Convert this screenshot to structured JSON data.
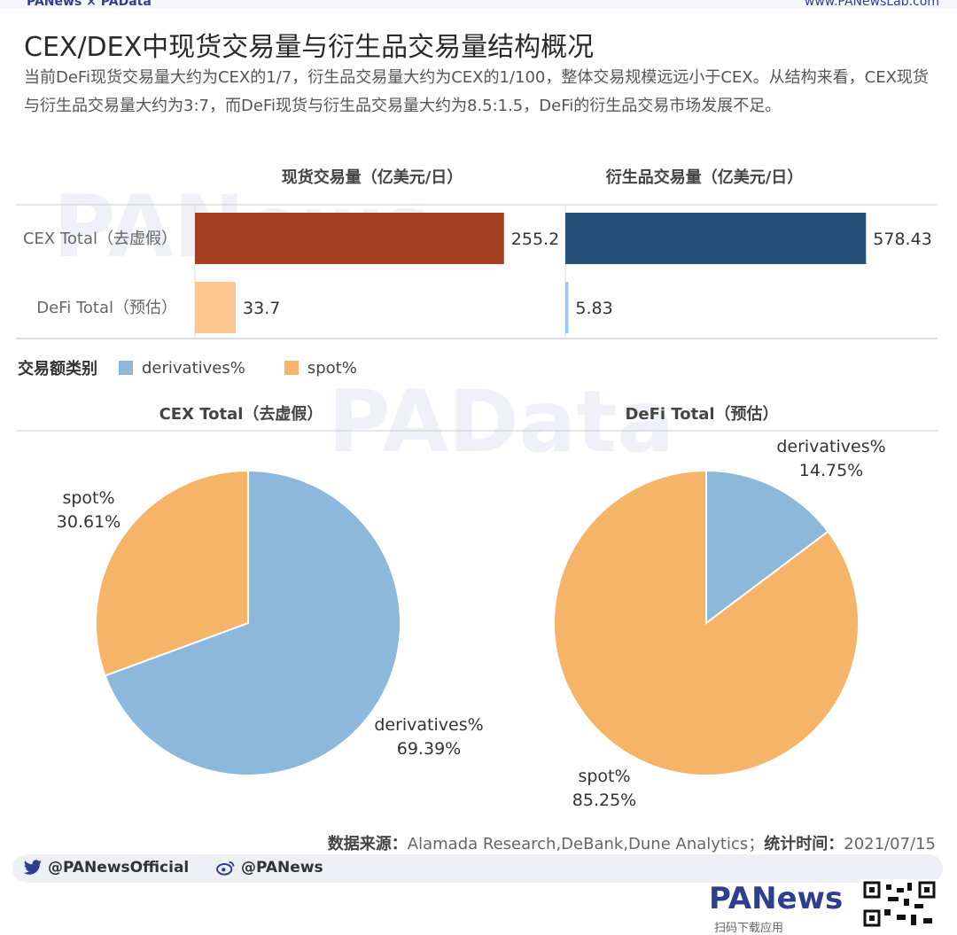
{
  "header": {
    "brand_left": "PANews × PAData",
    "brand_right": "www.PANewsLab.com"
  },
  "title": "CEX/DEX中现货交易量与衍生品交易量结构概况",
  "subtitle": "当前DeFi现货交易量大约为CEX的1/7，衍生品交易量大约为CEX的1/100，整体交易规模远远小于CEX。从结构来看，CEX现货与衍生品交易量大约为3:7，而DeFi现货与衍生品交易量大约为8.5:1.5，DeFi的衍生品交易市场发展不足。",
  "watermarks": [
    "PANews",
    "PAData"
  ],
  "legend": {
    "title": "交易额类别",
    "items": [
      {
        "label": "derivatives%",
        "color": "#8cb8dc"
      },
      {
        "label": "spot%",
        "color": "#f6b469"
      }
    ]
  },
  "source": {
    "label": "数据来源：",
    "text": "Alamada Research,DeBank,Dune Analytics；",
    "date_label": "统计时间：",
    "date": "2021/07/15"
  },
  "social": {
    "twitter": "@PANewsOfficial",
    "weibo": "@PANews"
  },
  "footer": {
    "logo": "PANews",
    "note": "扫码下载应用"
  },
  "chart_data": [
    {
      "type": "bar",
      "title": "现货交易量（亿美元/日）",
      "categories": [
        "CEX Total（去虚假）",
        "DeFi Total（预估）"
      ],
      "values": [
        255.2,
        33.7
      ],
      "labels": [
        "255.2",
        "33.7"
      ],
      "colors": [
        "#a33e21",
        "#fbc68f"
      ],
      "xlim": [
        0,
        300
      ]
    },
    {
      "type": "bar",
      "title": "衍生品交易量（亿美元/日）",
      "categories": [
        "CEX Total（去虚假）",
        "DeFi Total（预估）"
      ],
      "values": [
        578.43,
        5.83
      ],
      "labels": [
        "578.43",
        "5.83"
      ],
      "colors": [
        "#24507a",
        "#9ec5e4"
      ],
      "xlim": [
        0,
        716
      ]
    },
    {
      "type": "pie",
      "title": "CEX Total（去虚假）",
      "slices": [
        {
          "name": "derivatives%",
          "value": 69.39,
          "label": "69.39%",
          "color": "#8cb8dc"
        },
        {
          "name": "spot%",
          "value": 30.61,
          "label": "30.61%",
          "color": "#f6b469"
        }
      ]
    },
    {
      "type": "pie",
      "title": "DeFi Total（预估）",
      "slices": [
        {
          "name": "derivatives%",
          "value": 14.75,
          "label": "14.75%",
          "color": "#8cb8dc"
        },
        {
          "name": "spot%",
          "value": 85.25,
          "label": "85.25%",
          "color": "#f6b469"
        }
      ]
    }
  ]
}
